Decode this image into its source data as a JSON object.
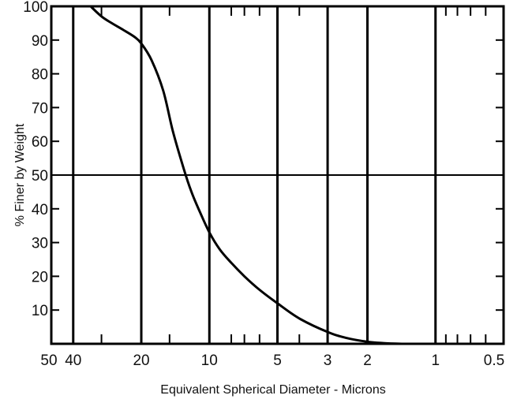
{
  "chart_data": {
    "type": "line",
    "title": "",
    "xlabel": "Equivalent Spherical Diameter - Microns",
    "ylabel": "% Finer by Weight",
    "x_scale": "log",
    "x_direction": "descending",
    "xlim": [
      50,
      0.5
    ],
    "ylim": [
      0,
      100
    ],
    "x_tick_labels": [
      "50",
      "40",
      "20",
      "10",
      "5",
      "3",
      "2",
      "1",
      "0.5"
    ],
    "y_tick_labels": [
      "10",
      "20",
      "30",
      "40",
      "50",
      "60",
      "70",
      "80",
      "90",
      "100"
    ],
    "grid_x": [
      40,
      20,
      10,
      5,
      3,
      2,
      1
    ],
    "grid_y": [
      50
    ],
    "minor_x_ticks": [
      30,
      15,
      8,
      7,
      6,
      4,
      0.9,
      0.8,
      0.7,
      0.6
    ],
    "line_color": "#000000",
    "series": [
      {
        "x": [
          33.5,
          30,
          27,
          24,
          21.5,
          20,
          18,
          16,
          14.5,
          13,
          12,
          11,
          10,
          9,
          8,
          7,
          6,
          5,
          4,
          3,
          2.5,
          2,
          1.7,
          1.4
        ],
        "y": [
          100,
          97,
          95,
          93,
          91,
          89,
          84,
          75,
          63,
          52,
          45,
          39,
          33,
          28,
          24,
          20,
          16,
          12,
          7.5,
          3.5,
          1.8,
          0.6,
          0.2,
          0
        ]
      }
    ]
  }
}
